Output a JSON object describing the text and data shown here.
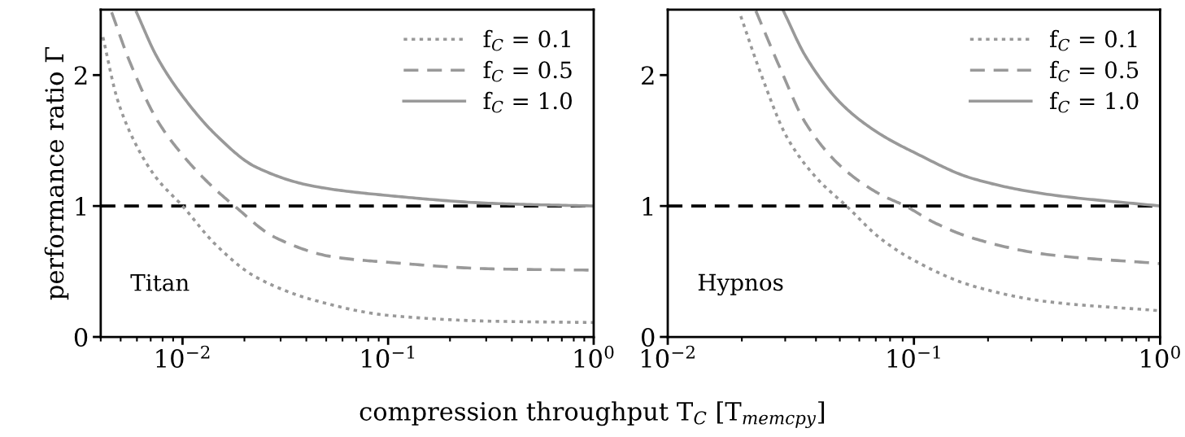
{
  "chart_data": [
    {
      "type": "line",
      "ylabel": "performance ratio Γ",
      "xlabel": "compression throughput T$_{C}$ [T$_{memcpy}$]",
      "log": "x",
      "xlim": [
        0.004,
        1
      ],
      "xticks": [
        {
          "value": 0.01,
          "label": "10$^{−2}$"
        },
        {
          "value": 0.1,
          "label": "10$^{−1}$"
        },
        {
          "value": 1,
          "label": "10$^{0}$"
        }
      ],
      "ylim": [
        0,
        2.5
      ],
      "yticks": [
        0,
        1,
        2
      ],
      "grid": false,
      "legend": "top right",
      "annotations": [
        "Titan"
      ],
      "ref_lines": [
        {
          "axis": "y",
          "value": 1,
          "color": "#000000",
          "line_style": "dashed"
        }
      ],
      "series": [
        {
          "name": "f$_{C}$ = 0.1",
          "color": "#999999",
          "line_style": "dotted",
          "x": [
            0.0041,
            0.00483,
            0.00602,
            0.0075,
            0.01,
            0.0146,
            0.0226,
            0.0438,
            0.1,
            0.32,
            1.0
          ],
          "values": [
            2.29,
            1.81,
            1.45,
            1.21,
            1.0,
            0.7,
            0.46,
            0.28,
            0.165,
            0.12,
            0.11
          ]
        },
        {
          "name": "f$_{C}$ = 0.5",
          "color": "#999999",
          "line_style": "dashed",
          "x": [
            0.00452,
            0.00551,
            0.0075,
            0.01,
            0.0133,
            0.0179,
            0.0282,
            0.0547,
            0.1,
            0.32,
            1.0
          ],
          "values": [
            2.48,
            2.11,
            1.66,
            1.39,
            1.18,
            1.0,
            0.76,
            0.61,
            0.57,
            0.52,
            0.51
          ]
        },
        {
          "name": "f$_{C}$ = 1.0",
          "color": "#999999",
          "line_style": "solid",
          "x": [
            0.00597,
            0.0075,
            0.01,
            0.0146,
            0.0226,
            0.0438,
            0.1,
            0.32,
            1.0
          ],
          "values": [
            2.48,
            2.14,
            1.84,
            1.54,
            1.3,
            1.15,
            1.08,
            1.02,
            1.0
          ]
        }
      ]
    },
    {
      "type": "line",
      "log": "x",
      "xlim": [
        0.01,
        1
      ],
      "xticks": [
        {
          "value": 0.01,
          "label": "10$^{−2}$"
        },
        {
          "value": 0.1,
          "label": "10$^{−1}$"
        },
        {
          "value": 1,
          "label": "10$^{0}$"
        }
      ],
      "ylim": [
        0,
        2.5
      ],
      "yticks": [
        0,
        1,
        2
      ],
      "grid": false,
      "legend": "top right",
      "annotations": [
        "Hypnos"
      ],
      "ref_lines": [
        {
          "axis": "y",
          "value": 1,
          "color": "#000000",
          "line_style": "dashed"
        }
      ],
      "series": [
        {
          "name": "f$_{C}$ = 0.1",
          "color": "#999999",
          "line_style": "dotted",
          "x": [
            0.0198,
            0.024,
            0.0306,
            0.0404,
            0.0532,
            0.0728,
            0.1,
            0.173,
            0.347,
            1.0
          ],
          "values": [
            2.45,
            2.0,
            1.52,
            1.21,
            1.0,
            0.755,
            0.585,
            0.39,
            0.27,
            0.2
          ]
        },
        {
          "name": "f$_{C}$ = 0.5",
          "color": "#999999",
          "line_style": "dashed",
          "x": [
            0.0228,
            0.0285,
            0.0364,
            0.0514,
            0.0728,
            0.0923,
            0.122,
            0.173,
            0.347,
            1.0
          ],
          "values": [
            2.49,
            2.06,
            1.63,
            1.29,
            1.09,
            1.0,
            0.87,
            0.755,
            0.63,
            0.56
          ]
        },
        {
          "name": "f$_{C}$ = 1.0",
          "color": "#999999",
          "line_style": "solid",
          "x": [
            0.0295,
            0.0364,
            0.0514,
            0.0728,
            0.1,
            0.173,
            0.347,
            1.0
          ],
          "values": [
            2.49,
            2.14,
            1.77,
            1.55,
            1.41,
            1.21,
            1.09,
            1.0
          ]
        }
      ]
    }
  ]
}
